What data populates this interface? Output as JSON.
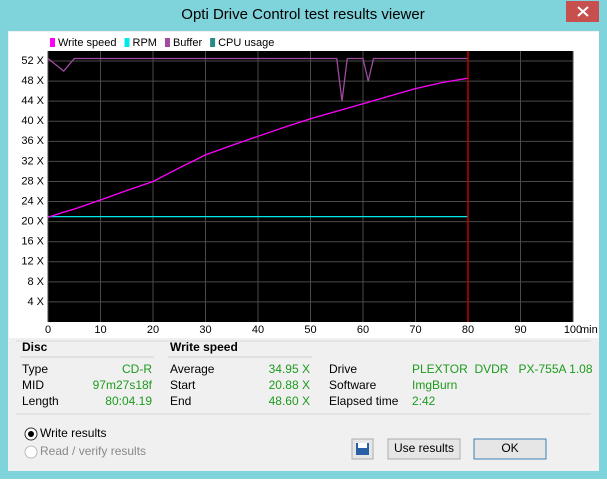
{
  "window": {
    "title": "Opti Drive Control test results viewer"
  },
  "chart_data": {
    "type": "line",
    "xlabel": "min",
    "x": [
      0,
      3,
      5,
      10,
      15,
      20,
      25,
      30,
      35,
      40,
      45,
      50,
      55,
      56,
      57,
      60,
      61,
      62,
      65,
      70,
      75,
      80
    ],
    "xlim": [
      0,
      100
    ],
    "xticks": [
      0,
      10,
      20,
      30,
      40,
      50,
      60,
      70,
      80,
      90,
      100
    ],
    "ylim": [
      0,
      54
    ],
    "yticks": [
      {
        "value": 4,
        "label": "4 X"
      },
      {
        "value": 8,
        "label": "8 X"
      },
      {
        "value": 12,
        "label": "12 X"
      },
      {
        "value": 16,
        "label": "16 X"
      },
      {
        "value": 20,
        "label": "20 X"
      },
      {
        "value": 24,
        "label": "24 X"
      },
      {
        "value": 28,
        "label": "28 X"
      },
      {
        "value": 32,
        "label": "32 X"
      },
      {
        "value": 36,
        "label": "36 X"
      },
      {
        "value": 40,
        "label": "40 X"
      },
      {
        "value": 44,
        "label": "44 X"
      },
      {
        "value": 48,
        "label": "48 X"
      },
      {
        "value": 52,
        "label": "52 X"
      }
    ],
    "grid": true,
    "legend": "top-left",
    "series": [
      {
        "name": "Write speed",
        "color": "#ff00ff",
        "values": [
          20.88,
          21.9,
          22.5,
          24.3,
          26.2,
          28,
          30.7,
          33.3,
          35.2,
          37,
          38.8,
          40.5,
          42,
          42.3,
          42.6,
          43.5,
          43.8,
          44.1,
          45,
          46.5,
          47.7,
          48.6
        ]
      },
      {
        "name": "RPM",
        "color": "#00e8e8",
        "values": [
          21,
          21,
          21,
          21,
          21,
          21,
          21,
          21,
          21,
          21,
          21,
          21,
          21,
          21,
          21,
          21,
          21,
          21,
          21,
          21,
          21,
          21
        ]
      },
      {
        "name": "Buffer",
        "color": "#a04aa0",
        "values": [
          52.5,
          50,
          52.5,
          52.5,
          52.5,
          52.5,
          52.5,
          52.5,
          52.5,
          52.5,
          52.5,
          52.5,
          52.5,
          44,
          52.5,
          52.5,
          48,
          52.5,
          52.5,
          52.5,
          52.5,
          52.5
        ]
      },
      {
        "name": "CPU usage",
        "color": "#2a8a8a",
        "values": [
          null,
          null,
          null,
          null,
          null,
          null,
          null,
          null,
          null,
          null,
          null,
          null,
          null,
          null,
          null,
          null,
          null,
          null,
          null,
          null,
          null,
          null
        ]
      }
    ]
  },
  "info": [
    {
      "title": "Disc",
      "rows": [
        [
          "Type",
          "CD-R"
        ],
        [
          "MID",
          "97m27s18f"
        ],
        [
          "Length",
          "80:04.19"
        ]
      ]
    },
    {
      "title": "Write speed",
      "rows": [
        [
          "Average",
          "34.95 X"
        ],
        [
          "Start",
          "20.88 X"
        ],
        [
          "End",
          "48.60 X"
        ]
      ]
    },
    {
      "rows": [
        [
          "Drive",
          "PLEXTOR  DVDR   PX-755A 1.08"
        ],
        [
          "Software",
          "ImgBurn"
        ],
        [
          "Elapsed time",
          "2:42"
        ]
      ]
    }
  ],
  "options": [
    {
      "label": "Write results",
      "checked": true,
      "enabled": true
    },
    {
      "label": "Read / verify results",
      "checked": false,
      "enabled": false
    }
  ],
  "buttons": [
    "Use results",
    "OK"
  ]
}
